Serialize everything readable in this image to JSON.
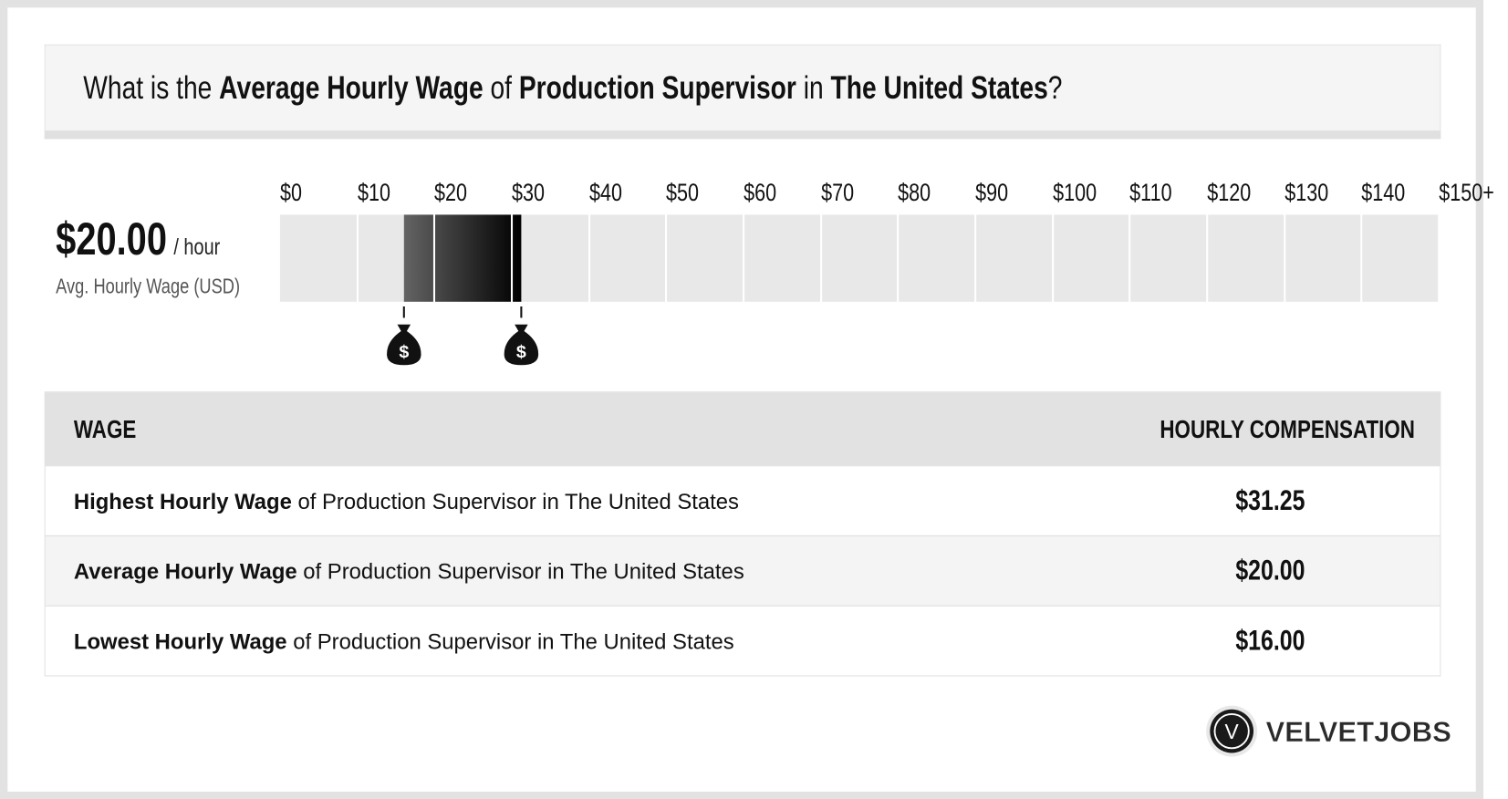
{
  "header": {
    "q1": "What is the ",
    "b1": "Average Hourly Wage",
    "q2": " of ",
    "b2": "Production Supervisor",
    "q3": " in ",
    "b3": "The United States",
    "q4": "?"
  },
  "summary": {
    "value": "$20.00",
    "unit": "/ hour",
    "label": "Avg. Hourly Wage (USD)"
  },
  "scale": {
    "ticks": [
      "$0",
      "$10",
      "$20",
      "$30",
      "$40",
      "$50",
      "$60",
      "$70",
      "$80",
      "$90",
      "$100",
      "$110",
      "$120",
      "$130",
      "$140",
      "$150+"
    ],
    "min": 0,
    "max": 150,
    "low": 16.0,
    "avg": 20.0,
    "high": 31.25,
    "marker_icon": "money-bag-icon"
  },
  "table": {
    "headers": [
      "WAGE",
      "HOURLY COMPENSATION"
    ],
    "rows": [
      {
        "bold": "Highest Hourly Wage",
        "rest": " of Production Supervisor in The United States",
        "value": "$31.25"
      },
      {
        "bold": "Average Hourly Wage",
        "rest": " of Production Supervisor in The United States",
        "value": "$20.00"
      },
      {
        "bold": "Lowest Hourly Wage",
        "rest": " of Production Supervisor in The United States",
        "value": "$16.00"
      }
    ]
  },
  "logo": {
    "text": "VELVETJOBS",
    "mark": "V"
  }
}
